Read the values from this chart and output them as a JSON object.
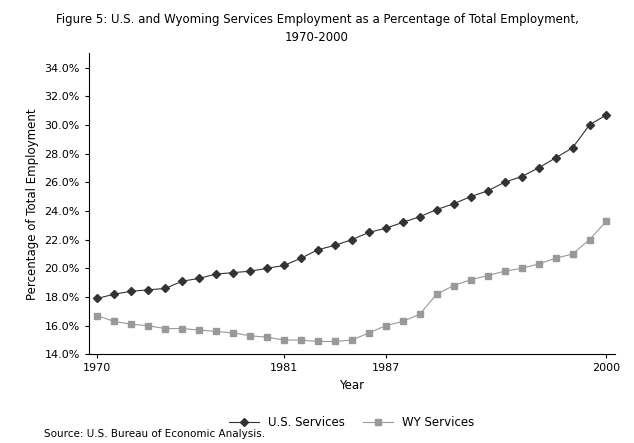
{
  "title_line1": "Figure 5: U.S. and Wyoming Services Employment as a Percentage of Total Employment,",
  "title_line2": "1970-2000",
  "xlabel": "Year",
  "ylabel": "Percentage of Total Employment",
  "source": "Source: U.S. Bureau of Economic Analysis.",
  "years": [
    1970,
    1971,
    1972,
    1973,
    1974,
    1975,
    1976,
    1977,
    1978,
    1979,
    1980,
    1981,
    1982,
    1983,
    1984,
    1985,
    1986,
    1987,
    1988,
    1989,
    1990,
    1991,
    1992,
    1993,
    1994,
    1995,
    1996,
    1997,
    1998,
    1999,
    2000
  ],
  "us_services": [
    0.179,
    0.182,
    0.184,
    0.185,
    0.186,
    0.191,
    0.193,
    0.196,
    0.197,
    0.198,
    0.2,
    0.202,
    0.207,
    0.213,
    0.216,
    0.22,
    0.225,
    0.228,
    0.232,
    0.236,
    0.241,
    0.245,
    0.25,
    0.254,
    0.26,
    0.264,
    0.27,
    0.277,
    0.284,
    0.3,
    0.307
  ],
  "wy_services": [
    0.167,
    0.163,
    0.161,
    0.16,
    0.158,
    0.158,
    0.157,
    0.156,
    0.155,
    0.153,
    0.152,
    0.15,
    0.15,
    0.149,
    0.149,
    0.15,
    0.155,
    0.16,
    0.163,
    0.168,
    0.182,
    0.188,
    0.192,
    0.195,
    0.198,
    0.2,
    0.203,
    0.207,
    0.21,
    0.22,
    0.233
  ],
  "us_color": "#333333",
  "wy_color": "#999999",
  "ylim_min": 0.14,
  "ylim_max": 0.35,
  "yticks": [
    0.14,
    0.16,
    0.18,
    0.2,
    0.22,
    0.24,
    0.26,
    0.28,
    0.3,
    0.32,
    0.34
  ],
  "xtick_labels": [
    "1970",
    "1981",
    "1987",
    "2000"
  ],
  "xtick_positions": [
    1970,
    1981,
    1987,
    2000
  ],
  "legend_us": "U.S. Services",
  "legend_wy": "WY Services",
  "background_color": "#ffffff",
  "title_fontsize": 8.5,
  "axis_label_fontsize": 8.5,
  "tick_fontsize": 8,
  "legend_fontsize": 8.5,
  "source_fontsize": 7.5
}
